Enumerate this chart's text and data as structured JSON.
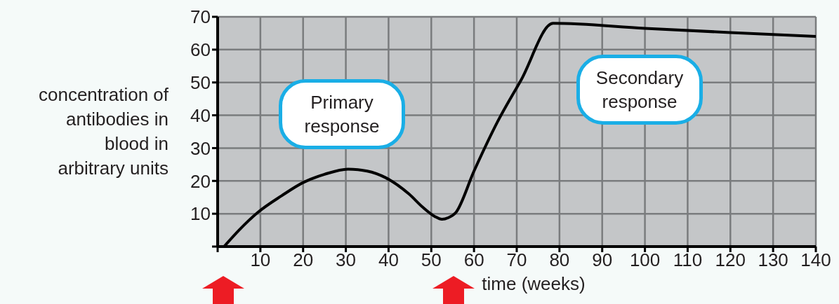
{
  "chart_data": {
    "type": "line",
    "xlabel": "time (weeks)",
    "ylabel": "concentration of antibodies in blood in arbitrary units",
    "x": [
      1.5,
      5,
      9.3,
      15,
      20,
      25,
      30.5,
      35,
      39.3,
      44.8,
      48,
      50.8,
      52.5,
      54,
      55.7,
      60,
      65.5,
      71,
      78.5,
      100,
      120,
      140
    ],
    "series": [
      {
        "color": "#000000",
        "values": [
          0,
          5,
          10.3,
          15.5,
          19.5,
          22,
          23.6,
          23,
          21,
          16,
          12,
          9.2,
          8.3,
          8.8,
          10.3,
          23,
          38,
          50.7,
          68,
          66.5,
          65.2,
          64
        ]
      }
    ],
    "xlim": [
      0,
      140
    ],
    "ylim": [
      0,
      70
    ],
    "xticks": [
      {
        "value": 0,
        "label": null
      },
      10,
      20,
      30,
      40,
      50,
      60,
      70,
      80,
      90,
      100,
      110,
      120,
      130,
      140
    ],
    "yticks": [
      {
        "value": 0,
        "label": null
      },
      10,
      20,
      30,
      40,
      50,
      60,
      70
    ],
    "grid": true,
    "marker": "none",
    "line_style": "solid",
    "annotations": [
      "Primary response",
      "Secondary response"
    ]
  }
}
